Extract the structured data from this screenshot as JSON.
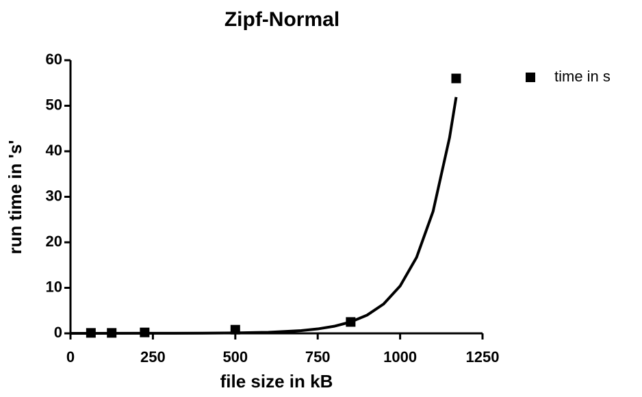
{
  "chart_data": {
    "type": "scatter",
    "title": "Zipf-Normal",
    "x_label": "file size in kB",
    "y_label": "run time in 's'",
    "xlim": [
      0,
      1250
    ],
    "xticks": [
      0,
      250,
      500,
      750,
      1000,
      1250
    ],
    "ylim": [
      0,
      60
    ],
    "yticks": [
      0,
      10,
      20,
      30,
      40,
      50,
      60
    ],
    "series": [
      {
        "name": "time in s",
        "color": "#000000",
        "x": [
          62,
          125,
          225,
          500,
          850,
          1170
        ],
        "values": [
          0.1,
          0.1,
          0.2,
          0.8,
          2.5,
          56
        ]
      }
    ],
    "fit": {
      "color": "#000000",
      "x": [
        0,
        200,
        400,
        500,
        600,
        700,
        750,
        800,
        850,
        900,
        950,
        1000,
        1050,
        1100,
        1150,
        1170
      ],
      "values": [
        0.0,
        0.01,
        0.04,
        0.09,
        0.23,
        0.6,
        0.97,
        1.56,
        2.5,
        4.01,
        6.45,
        10.4,
        16.7,
        26.8,
        43.0,
        51.9
      ]
    },
    "legend": "right"
  }
}
